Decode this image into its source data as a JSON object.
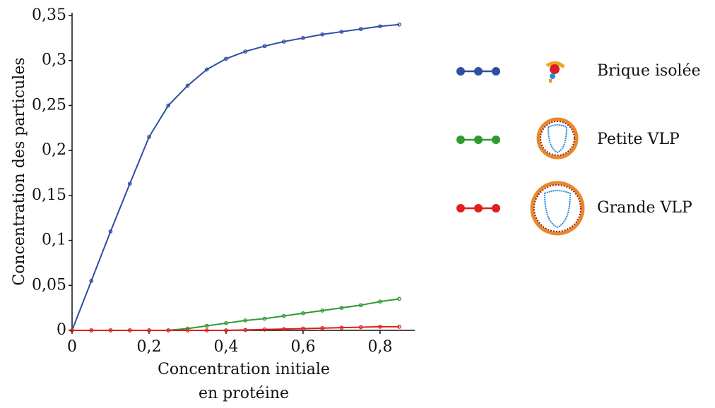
{
  "chart_data": {
    "type": "line",
    "ylabel": "Concentration des particules",
    "xlabel": [
      "Concentration initiale",
      "en protéine"
    ],
    "x": [
      0,
      0.05,
      0.1,
      0.15,
      0.2,
      0.25,
      0.3,
      0.35,
      0.4,
      0.45,
      0.5,
      0.55,
      0.6,
      0.65,
      0.7,
      0.75,
      0.8,
      0.85
    ],
    "series": [
      {
        "name": "Brique isolée",
        "color": "#2e4ea3",
        "values": [
          0,
          0.055,
          0.11,
          0.163,
          0.215,
          0.25,
          0.272,
          0.29,
          0.302,
          0.31,
          0.316,
          0.321,
          0.325,
          0.329,
          0.332,
          0.335,
          0.338,
          0.34
        ]
      },
      {
        "name": "Petite VLP",
        "color": "#2f9a2f",
        "values": [
          0,
          0,
          0,
          0,
          0,
          0,
          0.002,
          0.005,
          0.008,
          0.011,
          0.013,
          0.016,
          0.019,
          0.022,
          0.025,
          0.028,
          0.032,
          0.035
        ]
      },
      {
        "name": "Grande VLP",
        "color": "#e0201c",
        "values": [
          0,
          0,
          0,
          0,
          0,
          0,
          0,
          0,
          0,
          0.0005,
          0.001,
          0.0015,
          0.002,
          0.0025,
          0.003,
          0.0035,
          0.004,
          0.004
        ]
      }
    ],
    "xlim": [
      0,
      0.89
    ],
    "ylim": [
      0,
      0.35
    ],
    "xticks": [
      0,
      {
        "value": 0.2,
        "label": "0,2"
      },
      {
        "value": 0.4,
        "label": "0,4"
      },
      {
        "value": 0.6,
        "label": "0,6"
      },
      {
        "value": 0.8,
        "label": "0,8"
      }
    ],
    "yticks": [
      0,
      {
        "value": 0.05,
        "label": "0,05"
      },
      {
        "value": 0.1,
        "label": "0,1"
      },
      {
        "value": 0.15,
        "label": "0,15"
      },
      {
        "value": 0.2,
        "label": "0,2"
      },
      {
        "value": 0.25,
        "label": "0,25"
      },
      {
        "value": 0.3,
        "label": "0,3"
      },
      {
        "value": 0.35,
        "label": "0,35"
      }
    ]
  }
}
